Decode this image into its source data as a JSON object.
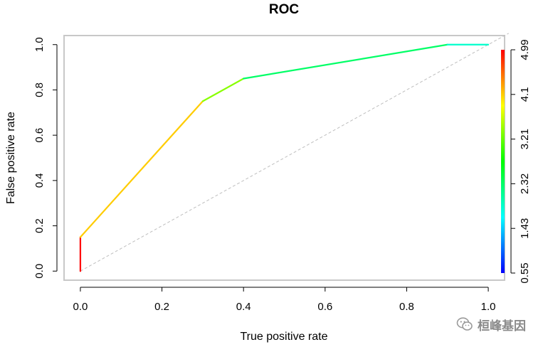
{
  "chart_data": {
    "type": "line",
    "title": "ROC",
    "xlabel": "True positive rate",
    "ylabel": "False positive rate",
    "xlim": [
      -0.04,
      1.04
    ],
    "ylim": [
      -0.04,
      1.04
    ],
    "x_ticks": [
      0.0,
      0.2,
      0.4,
      0.6,
      0.8,
      1.0
    ],
    "x_tick_labels": [
      "0.0",
      "0.2",
      "0.4",
      "0.6",
      "0.8",
      "1.0"
    ],
    "y_ticks": [
      0.0,
      0.2,
      0.4,
      0.6,
      0.8,
      1.0
    ],
    "y_tick_labels": [
      "0.0",
      "0.2",
      "0.4",
      "0.6",
      "0.8",
      "1.0"
    ],
    "curve": {
      "x": [
        0.0,
        0.0,
        0.3,
        0.4,
        0.9,
        1.0
      ],
      "y": [
        0.0,
        0.15,
        0.75,
        0.85,
        1.0,
        1.0
      ],
      "segment_colors": [
        "#ff0000",
        "#ffcc00",
        "#88ff00",
        "#00ff66",
        "#00ffcc"
      ]
    },
    "diagonal": {
      "x": [
        0,
        1.05
      ],
      "y": [
        0,
        1.05
      ],
      "color": "#bebebe",
      "dash": "dashed"
    },
    "colorbar": {
      "labels": [
        "0.55",
        "1.43",
        "2.32",
        "3.21",
        "4.1",
        "4.99"
      ],
      "min": 0.55,
      "max": 4.99,
      "colors": [
        "#0000ff",
        "#00ffff",
        "#00ff00",
        "#ffff00",
        "#ff0000"
      ]
    },
    "grid": false,
    "legend": "none"
  },
  "watermark": {
    "text": "桓峰基因",
    "icon": "wechat-icon"
  }
}
